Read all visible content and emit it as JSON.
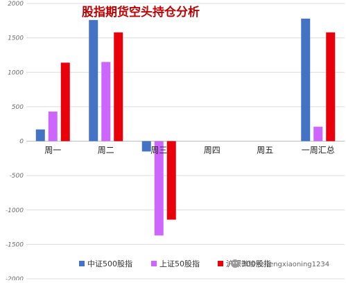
{
  "chart_data": {
    "type": "bar",
    "title": "股指期货空头持仓分析",
    "categories": [
      "周一",
      "周二",
      "周三",
      "周四",
      "周五",
      "一周汇总"
    ],
    "series": [
      {
        "name": "中证500股指",
        "values": [
          170,
          1760,
          -150,
          null,
          null,
          1780
        ],
        "color": "#4472C4"
      },
      {
        "name": "上证50股指",
        "values": [
          430,
          1150,
          -1370,
          null,
          null,
          210
        ],
        "color": "#CC66FF"
      },
      {
        "name": "沪深300股指",
        "values": [
          1140,
          1580,
          -1140,
          null,
          null,
          1580
        ],
        "color": "#E8000B"
      }
    ],
    "ylim": [
      -2000,
      2000
    ],
    "yticks": [
      2000,
      1500,
      1000,
      500,
      0,
      -500,
      -1000,
      -1500,
      -2000
    ],
    "ytick_labels": [
      "2000",
      "1500",
      "1000",
      "500",
      "0",
      "-500",
      "-1000",
      "-1500",
      "-2000"
    ],
    "grid": true,
    "legend_position": "bottom",
    "title_color": "#C00000"
  },
  "watermark": "微信号: fengxiaoning1234"
}
